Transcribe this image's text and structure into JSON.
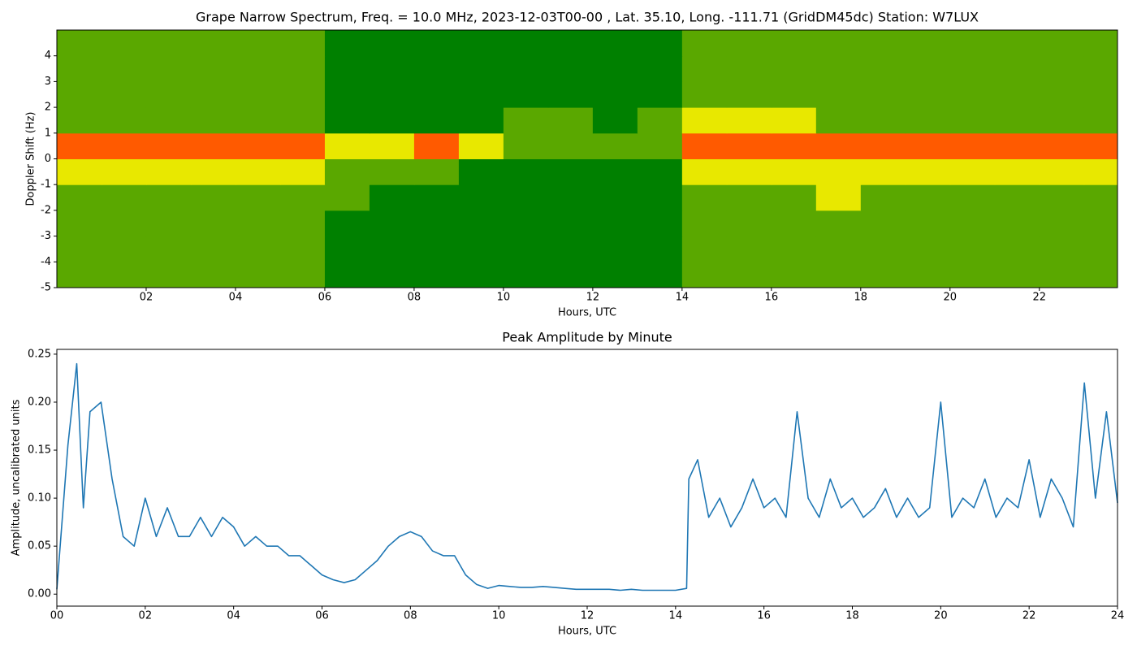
{
  "chart_data": [
    {
      "type": "heatmap",
      "title": "Grape Narrow Spectrum, Freq. = 10.0 MHz, 2023-12-03T00-00 , Lat.  35.10, Long. -111.71 (GridDM45dc) Station: W7LUX",
      "x_label": "Hours, UTC",
      "y_label": "Doppler Shift (Hz)",
      "xlim": [
        0,
        23.75
      ],
      "ylim": [
        -5,
        5
      ],
      "xticks": [
        {
          "value": 2,
          "label": "02"
        },
        {
          "value": 4,
          "label": "04"
        },
        {
          "value": 6,
          "label": "06"
        },
        {
          "value": 8,
          "label": "08"
        },
        {
          "value": 10,
          "label": "10"
        },
        {
          "value": 12,
          "label": "12"
        },
        {
          "value": 14,
          "label": "14"
        },
        {
          "value": 16,
          "label": "16"
        },
        {
          "value": 18,
          "label": "18"
        },
        {
          "value": 20,
          "label": "20"
        },
        {
          "value": 22,
          "label": "22"
        }
      ],
      "yticks": [
        -5,
        -4,
        -3,
        -2,
        -1,
        0,
        1,
        2,
        3,
        4
      ],
      "x_bins": [
        0,
        1,
        2,
        3,
        4,
        5,
        6,
        7,
        8,
        9,
        10,
        11,
        12,
        13,
        14,
        15,
        16,
        17,
        18,
        19,
        20,
        21,
        22,
        23,
        23.75
      ],
      "y_bins": [
        -5,
        -4,
        -3,
        -2,
        -1,
        0,
        1,
        2,
        3,
        4,
        5
      ],
      "colors": [
        "#008000",
        "#5aa800",
        "#e8e800",
        "#ff5a00"
      ],
      "z": [
        [
          1,
          1,
          1,
          1,
          1,
          1,
          0,
          0,
          0,
          0,
          0,
          0,
          0,
          0,
          1,
          1,
          1,
          1,
          1,
          1,
          1,
          1,
          1,
          1
        ],
        [
          1,
          1,
          1,
          1,
          1,
          1,
          0,
          0,
          0,
          0,
          0,
          0,
          0,
          0,
          1,
          1,
          1,
          1,
          1,
          1,
          1,
          1,
          1,
          1
        ],
        [
          1,
          1,
          1,
          1,
          1,
          1,
          0,
          0,
          0,
          0,
          0,
          0,
          0,
          0,
          1,
          1,
          1,
          1,
          1,
          1,
          1,
          1,
          1,
          1
        ],
        [
          1,
          1,
          1,
          1,
          1,
          1,
          1,
          0,
          0,
          0,
          0,
          0,
          0,
          0,
          1,
          1,
          1,
          2,
          1,
          1,
          1,
          1,
          1,
          1
        ],
        [
          2,
          2,
          2,
          2,
          2,
          2,
          1,
          1,
          1,
          0,
          0,
          0,
          0,
          0,
          2,
          2,
          2,
          2,
          2,
          2,
          2,
          2,
          2,
          2
        ],
        [
          3,
          3,
          3,
          3,
          3,
          3,
          2,
          2,
          3,
          2,
          1,
          1,
          1,
          1,
          3,
          3,
          3,
          3,
          3,
          3,
          3,
          3,
          3,
          3
        ],
        [
          1,
          1,
          1,
          1,
          1,
          1,
          0,
          0,
          0,
          0,
          1,
          1,
          0,
          1,
          2,
          2,
          2,
          1,
          1,
          1,
          1,
          1,
          1,
          1
        ],
        [
          1,
          1,
          1,
          1,
          1,
          1,
          0,
          0,
          0,
          0,
          0,
          0,
          0,
          0,
          1,
          1,
          1,
          1,
          1,
          1,
          1,
          1,
          1,
          1
        ],
        [
          1,
          1,
          1,
          1,
          1,
          1,
          0,
          0,
          0,
          0,
          0,
          0,
          0,
          0,
          1,
          1,
          1,
          1,
          1,
          1,
          1,
          1,
          1,
          1
        ],
        [
          1,
          1,
          1,
          1,
          1,
          1,
          0,
          0,
          0,
          0,
          0,
          0,
          0,
          0,
          1,
          1,
          1,
          1,
          1,
          1,
          1,
          1,
          1,
          1
        ]
      ]
    },
    {
      "type": "line",
      "title": "Peak Amplitude by Minute",
      "x_label": "Hours, UTC",
      "y_label": "Amplitude, uncalibrated units",
      "xlim": [
        0,
        24
      ],
      "ylim": [
        -0.0125,
        0.255
      ],
      "xticks": [
        {
          "value": 0,
          "label": "00"
        },
        {
          "value": 2,
          "label": "02"
        },
        {
          "value": 4,
          "label": "04"
        },
        {
          "value": 6,
          "label": "06"
        },
        {
          "value": 8,
          "label": "08"
        },
        {
          "value": 10,
          "label": "10"
        },
        {
          "value": 12,
          "label": "12"
        },
        {
          "value": 14,
          "label": "14"
        },
        {
          "value": 16,
          "label": "16"
        },
        {
          "value": 18,
          "label": "18"
        },
        {
          "value": 20,
          "label": "20"
        },
        {
          "value": 22,
          "label": "22"
        },
        {
          "value": 24,
          "label": "24"
        }
      ],
      "yticks": [
        {
          "value": 0,
          "label": "0.00"
        },
        0.05,
        {
          "value": 0.1,
          "label": "0.10"
        },
        0.15,
        {
          "value": 0.2,
          "label": "0.20"
        },
        0.25
      ],
      "x": [
        0,
        0.25,
        0.45,
        0.6,
        0.75,
        1,
        1.25,
        1.5,
        1.75,
        2,
        2.25,
        2.5,
        2.75,
        3,
        3.25,
        3.5,
        3.75,
        4,
        4.25,
        4.5,
        4.75,
        5,
        5.25,
        5.5,
        5.75,
        6,
        6.25,
        6.5,
        6.75,
        7,
        7.25,
        7.5,
        7.75,
        8,
        8.25,
        8.5,
        8.75,
        9,
        9.25,
        9.5,
        9.75,
        10,
        10.25,
        10.5,
        10.75,
        11,
        11.25,
        11.5,
        11.75,
        12,
        12.25,
        12.5,
        12.75,
        13,
        13.25,
        13.5,
        13.75,
        14,
        14.25,
        14.3,
        14.5,
        14.75,
        15,
        15.25,
        15.5,
        15.75,
        16,
        16.25,
        16.5,
        16.75,
        17,
        17.25,
        17.5,
        17.75,
        18,
        18.25,
        18.5,
        18.75,
        19,
        19.25,
        19.5,
        19.75,
        20,
        20.25,
        20.5,
        20.75,
        21,
        21.25,
        21.5,
        21.75,
        22,
        22.25,
        22.5,
        22.75,
        23,
        23.25,
        23.5,
        23.75,
        24
      ],
      "series": [
        {
          "color": "#1f77b4",
          "values": [
            0.005,
            0.155,
            0.24,
            0.09,
            0.19,
            0.2,
            0.12,
            0.06,
            0.05,
            0.1,
            0.06,
            0.09,
            0.06,
            0.06,
            0.08,
            0.06,
            0.08,
            0.07,
            0.05,
            0.06,
            0.05,
            0.05,
            0.04,
            0.04,
            0.03,
            0.02,
            0.015,
            0.012,
            0.015,
            0.025,
            0.035,
            0.05,
            0.06,
            0.065,
            0.06,
            0.045,
            0.04,
            0.04,
            0.02,
            0.01,
            0.006,
            0.009,
            0.008,
            0.007,
            0.007,
            0.008,
            0.007,
            0.006,
            0.005,
            0.005,
            0.005,
            0.005,
            0.004,
            0.005,
            0.004,
            0.004,
            0.004,
            0.004,
            0.006,
            0.12,
            0.14,
            0.08,
            0.1,
            0.07,
            0.09,
            0.12,
            0.09,
            0.1,
            0.08,
            0.19,
            0.1,
            0.08,
            0.12,
            0.09,
            0.1,
            0.08,
            0.09,
            0.11,
            0.08,
            0.1,
            0.08,
            0.09,
            0.2,
            0.08,
            0.1,
            0.09,
            0.12,
            0.08,
            0.1,
            0.09,
            0.14,
            0.08,
            0.12,
            0.1,
            0.07,
            0.22,
            0.1,
            0.19,
            0.095
          ]
        }
      ]
    }
  ]
}
